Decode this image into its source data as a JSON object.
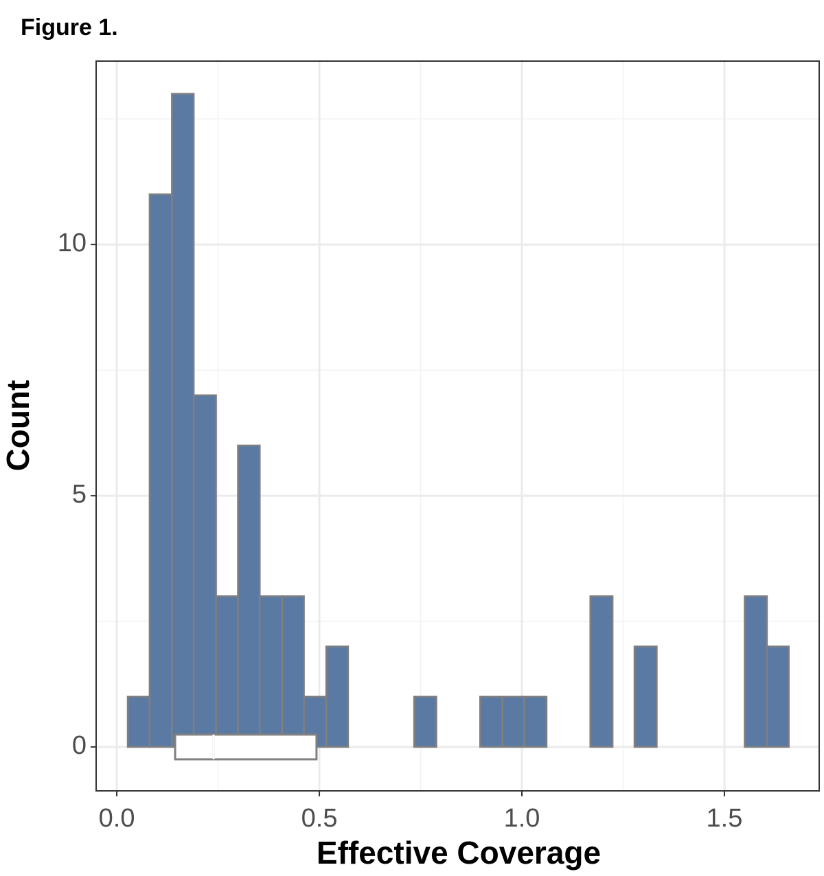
{
  "chart_data": {
    "type": "histogram",
    "title": "Figure 1.",
    "x_label": "Effective Coverage",
    "y_label": "Count",
    "bins": [
      0.027,
      0.081,
      0.136,
      0.19,
      0.245,
      0.299,
      0.353,
      0.408,
      0.462,
      0.517,
      0.571,
      0.625,
      0.68,
      0.734,
      0.789,
      0.843,
      0.897,
      0.952,
      1.006,
      1.061,
      1.115,
      1.169,
      1.224,
      1.278,
      1.333,
      1.387,
      1.441,
      1.496,
      1.55,
      1.605,
      1.659
    ],
    "values": [
      1,
      11,
      13,
      7,
      3,
      6,
      3,
      3,
      1,
      2,
      0,
      0,
      0,
      1,
      0,
      0,
      1,
      1,
      1,
      0,
      0,
      3,
      0,
      2,
      0,
      0,
      0,
      0,
      3,
      2
    ],
    "color": "#5b7aa3",
    "edge_color": "#808080",
    "box": {
      "q1": 0.144,
      "median": 0.239,
      "q3": 0.493
    },
    "xlim": [
      -0.051,
      1.734
    ],
    "ylim": [
      -0.874,
      13.65
    ],
    "xticks": [
      {
        "value": 0,
        "label": "0.0"
      },
      0.5,
      {
        "value": 1,
        "label": "1.0"
      },
      1.5
    ],
    "yticks": [
      0,
      5,
      10
    ],
    "minor_xticks": [
      0.25,
      0.75,
      1.25
    ],
    "minor_yticks": [
      2.5,
      7.5,
      12.5
    ],
    "grid": true
  }
}
